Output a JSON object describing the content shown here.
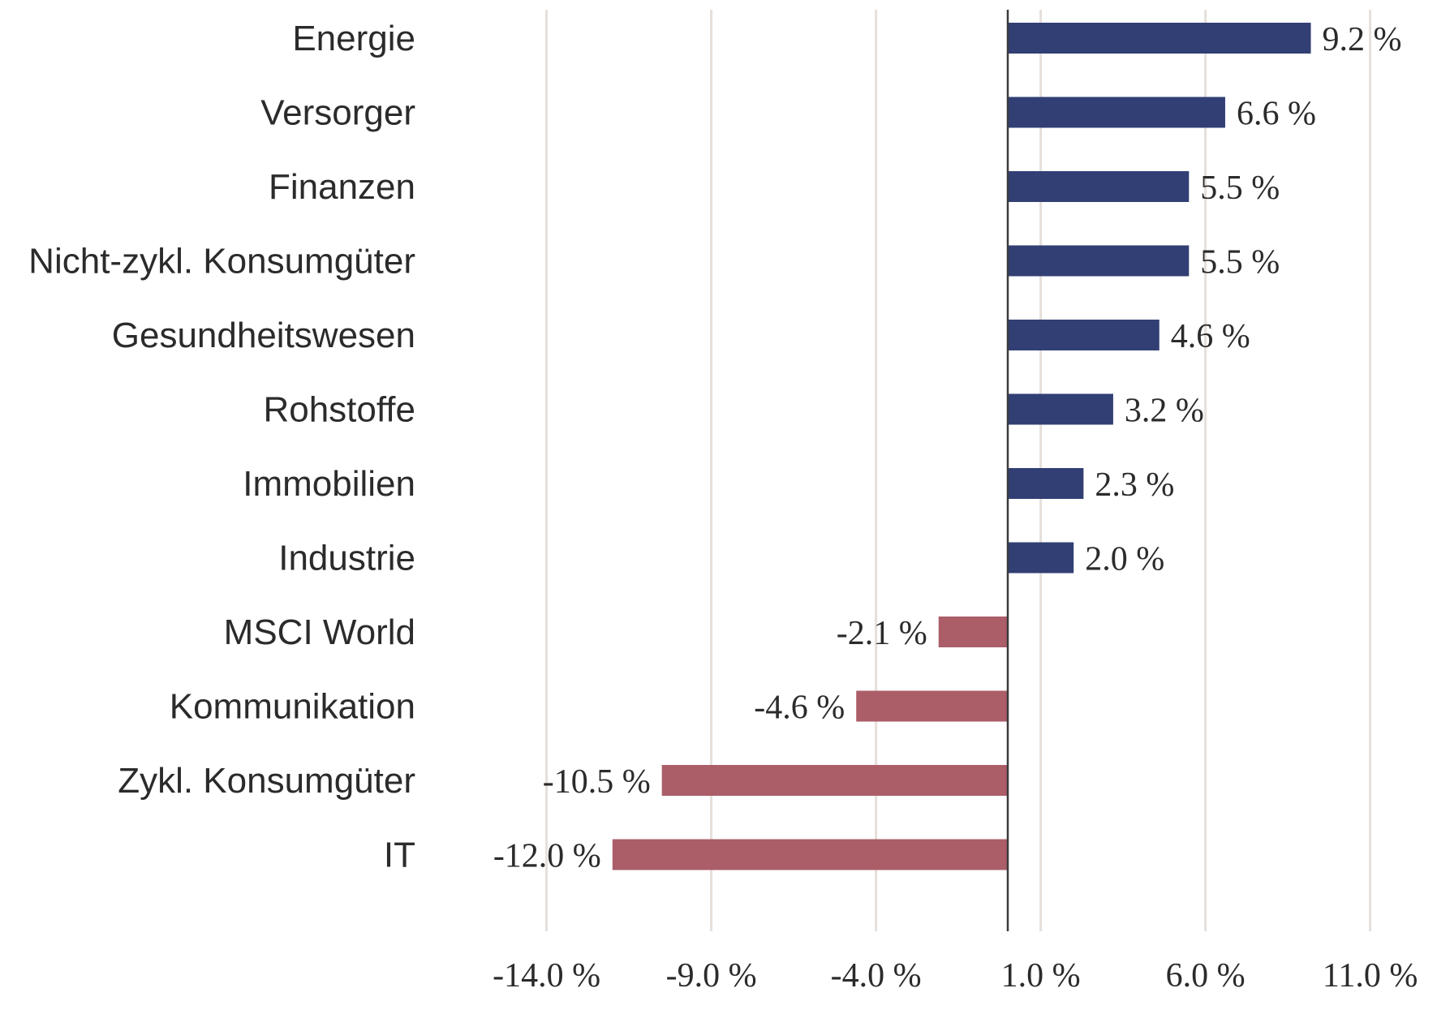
{
  "chart_data": {
    "type": "bar",
    "orientation": "horizontal",
    "title": "",
    "xlabel": "",
    "ylabel": "",
    "categories": [
      "Energie",
      "Versorger",
      "Finanzen",
      "Nicht-zykl. Konsumgüter",
      "Gesundheitswesen",
      "Rohstoffe",
      "Immobilien",
      "Industrie",
      "MSCI World",
      "Kommunikation",
      "Zykl. Konsumgüter",
      "IT"
    ],
    "values": [
      9.2,
      6.6,
      5.5,
      5.5,
      4.6,
      3.2,
      2.3,
      2.0,
      -2.1,
      -4.6,
      -10.5,
      -12.0
    ],
    "value_labels": [
      "9.2 %",
      "6.6 %",
      "5.5 %",
      "5.5 %",
      "4.6 %",
      "3.2 %",
      "2.3 %",
      "2.0 %",
      "-2.1 %",
      "-4.6 %",
      "-10.5 %",
      "-12.0 %"
    ],
    "xlim": [
      -15.0,
      11.5
    ],
    "xticks": [
      -14.0,
      -9.0,
      -4.0,
      1.0,
      6.0,
      11.0
    ],
    "xtick_labels": [
      "-14.0 %",
      "-9.0 %",
      "-4.0 %",
      "1.0 %",
      "6.0 %",
      "11.0 %"
    ],
    "grid": true,
    "legend": "none",
    "colors": {
      "positive": "#313f74",
      "negative": "#ab5d68",
      "gridline": "#e6dfda",
      "zero_axis": "#3b3b3b",
      "text": "#2b2b2b"
    }
  }
}
